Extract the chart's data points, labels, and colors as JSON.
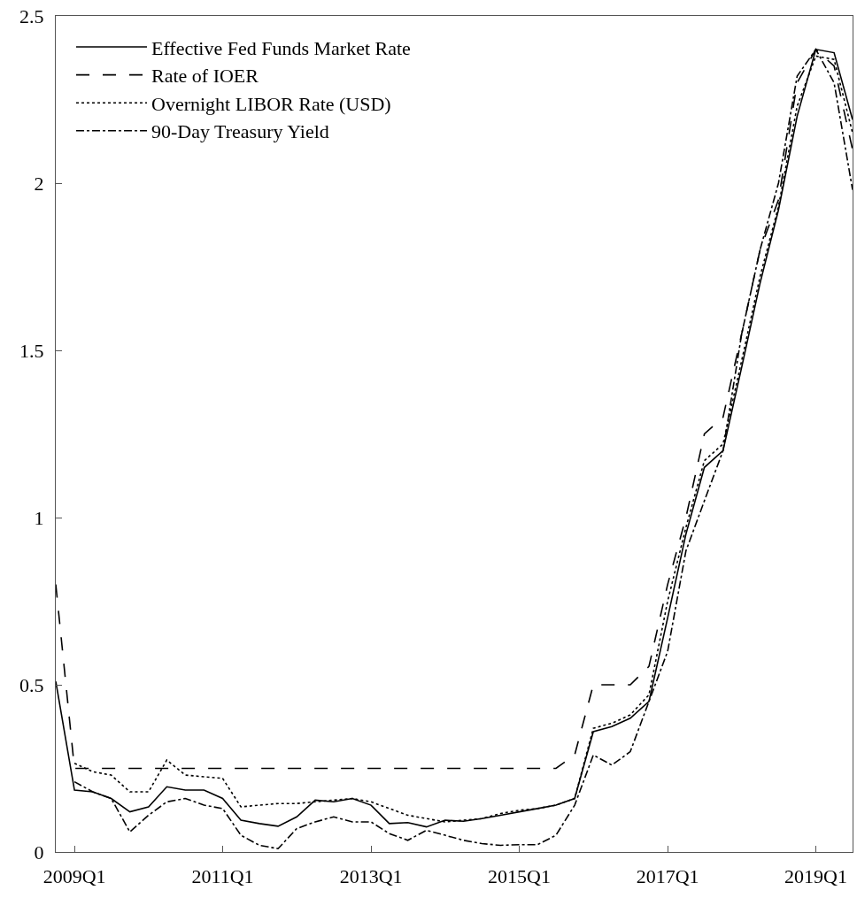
{
  "chart_data": {
    "type": "line",
    "x": [
      "2008-10",
      "2009-01",
      "2009-04",
      "2009-07",
      "2009-10",
      "2010-01",
      "2010-04",
      "2010-07",
      "2010-10",
      "2011-01",
      "2011-04",
      "2011-07",
      "2011-10",
      "2012-01",
      "2012-04",
      "2012-07",
      "2012-10",
      "2013-01",
      "2013-04",
      "2013-07",
      "2013-10",
      "2014-01",
      "2014-04",
      "2014-07",
      "2014-10",
      "2015-01",
      "2015-04",
      "2015-07",
      "2015-10",
      "2016-01",
      "2016-04",
      "2016-07",
      "2016-10",
      "2017-01",
      "2017-04",
      "2017-07",
      "2017-10",
      "2018-01",
      "2018-04",
      "2018-07",
      "2018-10",
      "2019-01",
      "2019-04",
      "2019-07"
    ],
    "series": [
      {
        "name": "Effective Fed Funds Market Rate",
        "color": "#000000",
        "line_style": "solid",
        "values": [
          0.51,
          0.185,
          0.18,
          0.16,
          0.12,
          0.135,
          0.195,
          0.185,
          0.185,
          0.16,
          0.095,
          0.085,
          0.077,
          0.105,
          0.155,
          0.15,
          0.16,
          0.14,
          0.085,
          0.088,
          0.075,
          0.095,
          0.092,
          0.1,
          0.11,
          0.12,
          0.13,
          0.14,
          0.16,
          0.36,
          0.375,
          0.4,
          0.45,
          0.7,
          0.95,
          1.15,
          1.2,
          1.45,
          1.7,
          1.92,
          2.2,
          2.4,
          2.39,
          2.19
        ]
      },
      {
        "name": "Rate of IOER",
        "color": "#000000",
        "line_style": "dashed",
        "values": [
          0.8,
          0.25,
          0.25,
          0.25,
          0.25,
          0.25,
          0.25,
          0.25,
          0.25,
          0.25,
          0.25,
          0.25,
          0.25,
          0.25,
          0.25,
          0.25,
          0.25,
          0.25,
          0.25,
          0.25,
          0.25,
          0.25,
          0.25,
          0.25,
          0.25,
          0.25,
          0.25,
          0.25,
          0.29,
          0.5,
          0.5,
          0.5,
          0.555,
          0.8,
          1.0,
          1.25,
          1.3,
          1.55,
          1.8,
          1.95,
          2.3,
          2.4,
          2.35,
          2.1
        ]
      },
      {
        "name": "Overnight LIBOR Rate (USD)",
        "color": "#000000",
        "line_style": "dotted",
        "values": [
          null,
          0.265,
          0.24,
          0.23,
          0.18,
          0.18,
          0.275,
          0.23,
          0.225,
          0.22,
          0.135,
          0.14,
          0.145,
          0.145,
          0.15,
          0.155,
          0.16,
          0.15,
          0.13,
          0.11,
          0.1,
          0.09,
          0.095,
          0.1,
          0.115,
          0.125,
          0.13,
          0.14,
          0.16,
          0.37,
          0.385,
          0.41,
          0.47,
          0.75,
          0.97,
          1.17,
          1.22,
          1.47,
          1.72,
          1.93,
          2.23,
          2.38,
          2.37,
          2.15
        ]
      },
      {
        "name": "90-Day Treasury Yield",
        "color": "#000000",
        "line_style": "dashdot",
        "values": [
          null,
          0.21,
          0.18,
          0.16,
          0.06,
          0.11,
          0.15,
          0.16,
          0.14,
          0.13,
          0.05,
          0.02,
          0.01,
          0.07,
          0.09,
          0.105,
          0.09,
          0.09,
          0.055,
          0.035,
          0.065,
          0.05,
          0.035,
          0.025,
          0.02,
          0.022,
          0.022,
          0.05,
          0.14,
          0.29,
          0.26,
          0.3,
          0.45,
          0.6,
          0.9,
          1.05,
          1.2,
          1.55,
          1.8,
          2.0,
          2.32,
          2.4,
          2.3,
          1.98
        ]
      }
    ],
    "xlim": [
      "2008-10",
      "2019-07"
    ],
    "xticks": [
      {
        "value": "2009-01",
        "label": "2009Q1"
      },
      {
        "value": "2011-01",
        "label": "2011Q1"
      },
      {
        "value": "2013-01",
        "label": "2013Q1"
      },
      {
        "value": "2015-01",
        "label": "2015Q1"
      },
      {
        "value": "2017-01",
        "label": "2017Q1"
      },
      {
        "value": "2019-01",
        "label": "2019Q1"
      }
    ],
    "ylim": [
      0,
      2.5
    ],
    "yticks": [
      0,
      0.5,
      1,
      1.5,
      2,
      2.5
    ],
    "legend": "top left"
  }
}
